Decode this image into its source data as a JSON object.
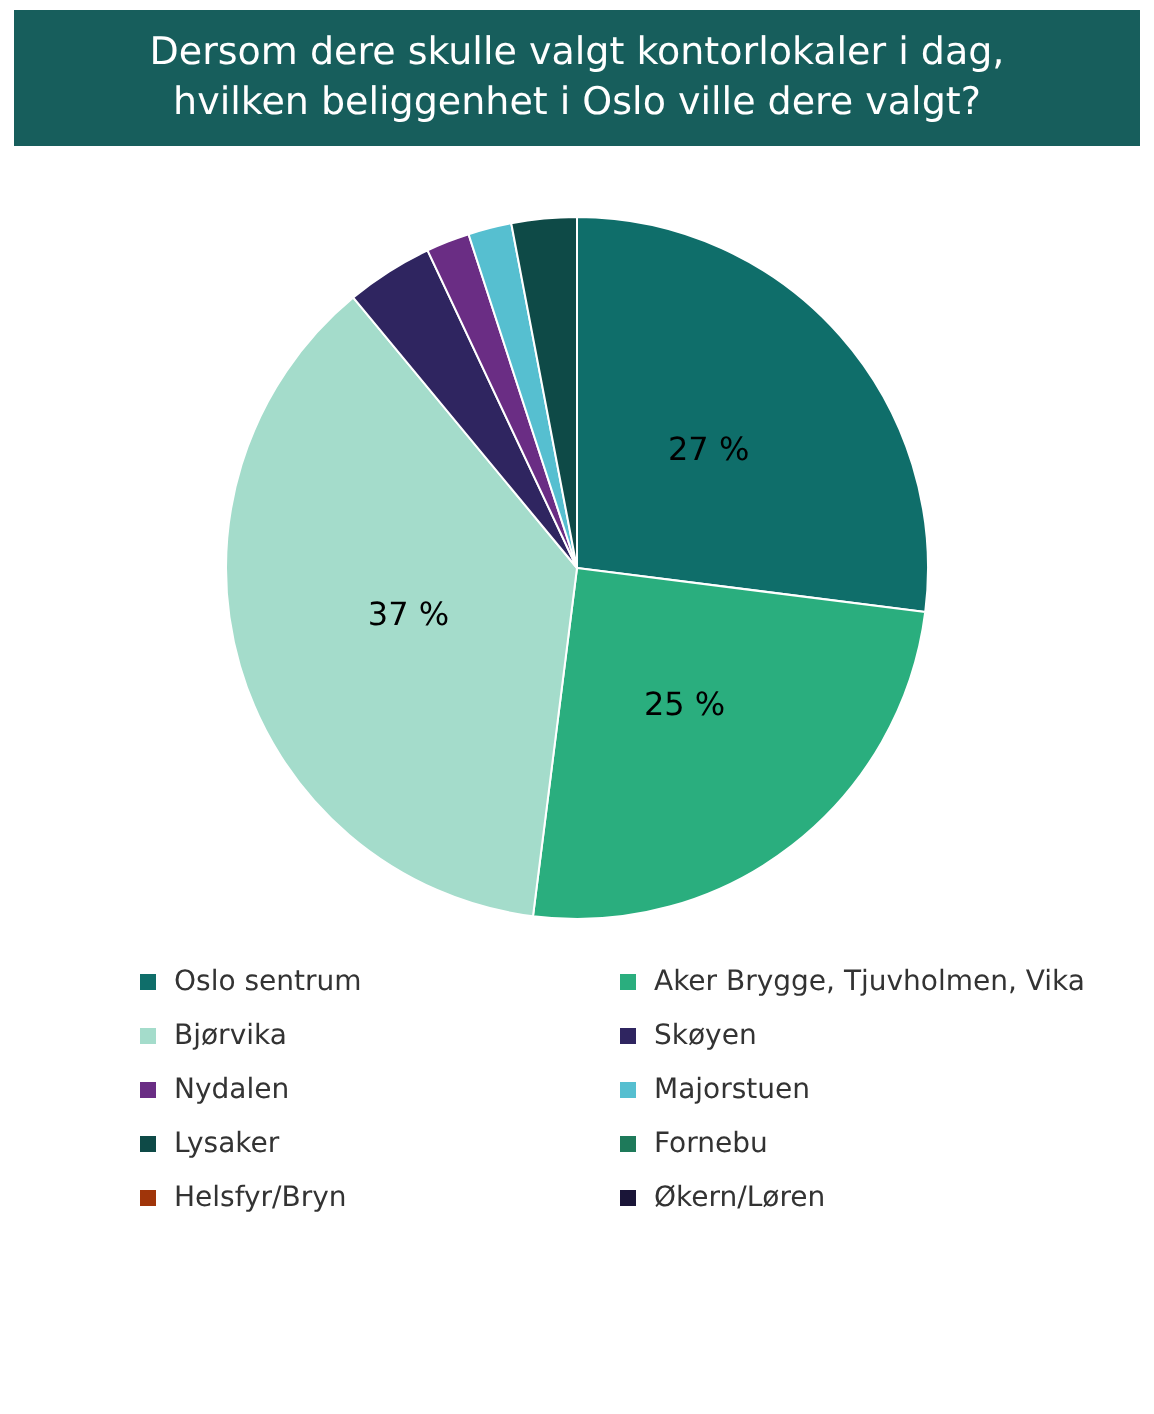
{
  "chart_data": {
    "type": "pie",
    "title": "Dersom dere skulle valgt kontorlokaler i dag, hvilken beliggenhet i Oslo ville dere valgt?",
    "categories": [
      "Oslo sentrum",
      "Aker Brygge, Tjuvholmen, Vika",
      "Bjørvika",
      "Skøyen",
      "Nydalen",
      "Majorstuen",
      "Lysaker",
      "Fornebu",
      "Helsfyr/Bryn",
      "Økern/Løren"
    ],
    "values": [
      27,
      25,
      37,
      4,
      2,
      2,
      3,
      0,
      0,
      0
    ],
    "colors": [
      "#0f6e6a",
      "#2aae7e",
      "#a4dccb",
      "#2f2560",
      "#6a2d84",
      "#56bfd0",
      "#0e4a47",
      "#1e7a5a",
      "#a0350a",
      "#1a1538"
    ],
    "value_labels": [
      "27 %",
      "25 %",
      "37 %",
      null,
      null,
      null,
      null,
      null,
      null,
      null
    ],
    "legend": "bottom"
  }
}
